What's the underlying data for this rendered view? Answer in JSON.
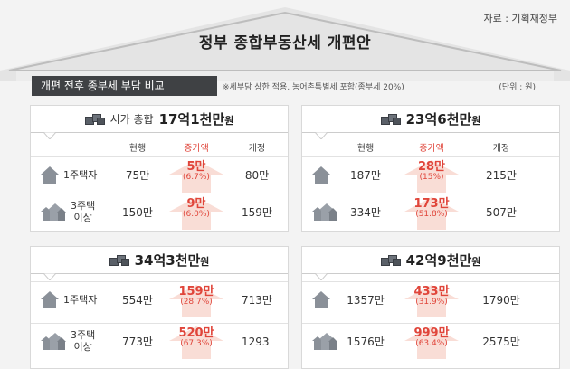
{
  "source": "자료 : 기획재정부",
  "title": "정부 종합부동산세 개편안",
  "subtitle": "개편 전후 종부세 부담 비교",
  "note": "※세부담 상한 적용, 농어촌특별세 포함(종부세 20%)",
  "unit": "(단위 : 원)",
  "columns": {
    "current": "현행",
    "increase": "증가액",
    "revised": "개정"
  },
  "colors": {
    "accent": "#e0453a",
    "arrow": "#f9ddd6",
    "dark": "#3f4144"
  },
  "panels": [
    {
      "label": "시가 총합",
      "amount": "17억1천만",
      "won": "원",
      "rows": [
        {
          "type": "1주택자",
          "current": "75만",
          "increase": "5만",
          "pct": "(6.7%)",
          "revised": "80만"
        },
        {
          "type1": "3주택",
          "type2": "이상",
          "current": "150만",
          "increase": "9만",
          "pct": "(6.0%)",
          "revised": "159만"
        }
      ]
    },
    {
      "amount": "23억6천만",
      "won": "원",
      "rows": [
        {
          "current": "187만",
          "increase": "28만",
          "pct": "(15%)",
          "revised": "215만"
        },
        {
          "current": "334만",
          "increase": "173만",
          "pct": "(51.8%)",
          "revised": "507만"
        }
      ]
    },
    {
      "amount": "34억3천만",
      "won": "원",
      "rows": [
        {
          "type": "1주택자",
          "current": "554만",
          "increase": "159만",
          "pct": "(28.7%)",
          "revised": "713만"
        },
        {
          "type1": "3주택",
          "type2": "이상",
          "current": "773만",
          "increase": "520만",
          "pct": "(67.3%)",
          "revised": "1293만"
        }
      ]
    },
    {
      "amount": "42억9천만",
      "won": "원",
      "rows": [
        {
          "current": "1357만",
          "increase": "433만",
          "pct": "(31.9%)",
          "revised": "1790만"
        },
        {
          "current": "1576만",
          "increase": "999만",
          "pct": "(63.4%)",
          "revised": "2575만"
        }
      ]
    }
  ]
}
